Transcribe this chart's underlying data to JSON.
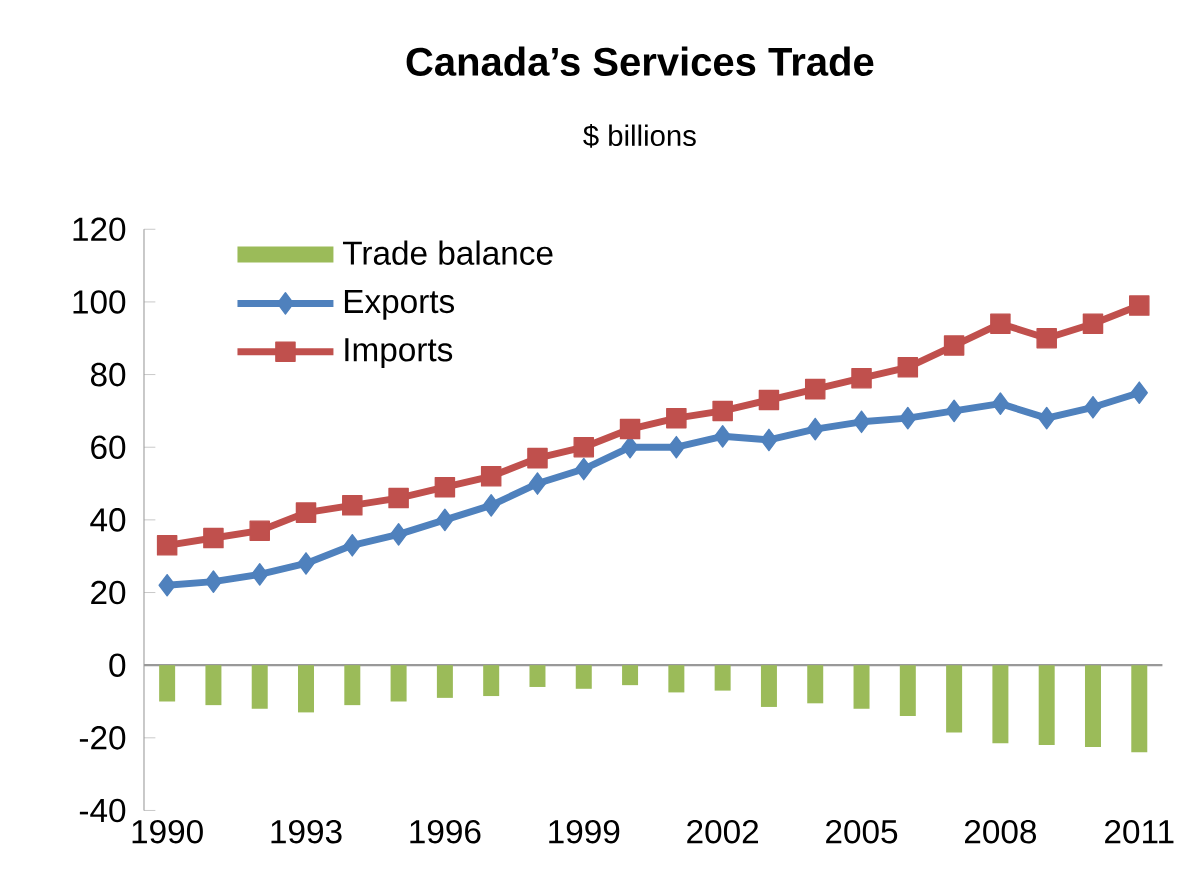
{
  "chart_data": {
    "type": "bar",
    "title": "Canada’s Services Trade",
    "subtitle": "$ billions",
    "categories": [
      "1990",
      null,
      null,
      "1993",
      null,
      null,
      "1996",
      null,
      null,
      "1999",
      null,
      null,
      "2002",
      null,
      null,
      "2005",
      null,
      null,
      "2008",
      null,
      null,
      "2011"
    ],
    "series": [
      {
        "name": "Trade balance",
        "color": "#9bbb59",
        "values": [
          -10,
          -11,
          -12,
          -13,
          -11,
          -10,
          -9,
          -8.5,
          -6,
          -6.5,
          -5.5,
          -7.5,
          -7,
          -11.5,
          -10.5,
          -12,
          -14,
          -18.5,
          -21.5,
          -22,
          -22.5,
          -24
        ]
      },
      {
        "name": "Exports",
        "type": "line",
        "marker": "diamond",
        "color": "#4f81bd",
        "values": [
          22,
          23,
          25,
          28,
          33,
          36,
          40,
          44,
          50,
          54,
          60,
          60,
          63,
          62,
          65,
          67,
          68,
          70,
          72,
          68,
          71,
          75
        ]
      },
      {
        "name": "Imports",
        "type": "line",
        "marker": "square",
        "color": "#c0504d",
        "values": [
          33,
          35,
          37,
          42,
          44,
          46,
          49,
          52,
          57,
          60,
          65,
          68,
          70,
          73,
          76,
          79,
          82,
          88,
          94,
          90,
          94,
          99
        ]
      }
    ],
    "ylim": [
      -40,
      120
    ],
    "yticks": [
      -40,
      -20,
      0,
      20,
      40,
      60,
      80,
      100,
      120
    ],
    "legend": "top left"
  }
}
